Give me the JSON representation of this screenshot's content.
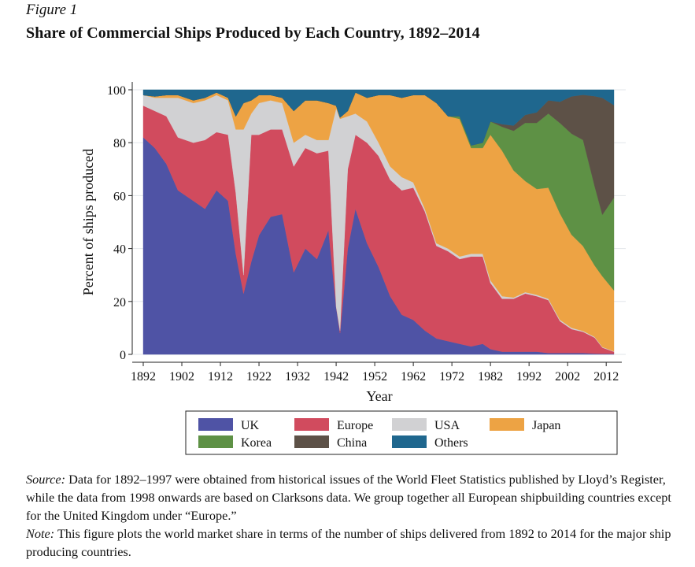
{
  "figure": {
    "label": "Figure 1",
    "title": "Share of Commercial Ships Produced by Each Country, 1892–2014"
  },
  "notes": {
    "source_label": "Source:",
    "source_text": " Data for 1892–1997 were obtained from historical issues of the World Fleet Statistics published by Lloyd’s Register, while the data from 1998 onwards are based on Clarksons data. We group together all European shipbuilding countries except for the United Kingdom under “Europe.”",
    "note_label": "Note:",
    "note_text": " This figure plots the world market share in terms of the number of ships delivered from 1892 to 2014 for the major ship producing countries."
  },
  "chart_data": {
    "type": "area",
    "stacked": true,
    "xlabel": "Year",
    "ylabel": "Percent of ships produced",
    "xlim": [
      1892,
      2014
    ],
    "ylim": [
      0,
      100
    ],
    "xticks": [
      1892,
      1902,
      1912,
      1922,
      1932,
      1942,
      1952,
      1962,
      1972,
      1982,
      1992,
      2002,
      2012
    ],
    "yticks": [
      0,
      20,
      40,
      60,
      80,
      100
    ],
    "grid": true,
    "legend_position": "bottom",
    "x": [
      1892,
      1895,
      1898,
      1901,
      1905,
      1908,
      1911,
      1914,
      1916,
      1918,
      1920,
      1922,
      1925,
      1928,
      1931,
      1934,
      1937,
      1940,
      1942,
      1943,
      1945,
      1947,
      1950,
      1953,
      1956,
      1959,
      1962,
      1965,
      1968,
      1971,
      1974,
      1977,
      1980,
      1982,
      1985,
      1988,
      1991,
      1994,
      1997,
      2000,
      2003,
      2006,
      2009,
      2011,
      2014
    ],
    "series": [
      {
        "name": "UK",
        "color": "#4f53a5",
        "values": [
          82,
          78,
          72,
          62,
          58,
          55,
          62,
          58,
          38,
          23,
          35,
          45,
          52,
          53,
          31,
          40,
          36,
          47,
          18,
          8,
          40,
          55,
          42,
          33,
          22,
          15,
          13,
          9,
          6,
          5,
          4,
          3,
          4,
          2,
          1,
          1,
          1,
          1,
          0.5,
          0.5,
          0.5,
          0.5,
          0.3,
          0.2,
          0.2
        ]
      },
      {
        "name": "Europe",
        "color": "#d14b5e",
        "values": [
          12,
          14,
          18,
          20,
          22,
          26,
          22,
          25,
          23,
          7,
          48,
          38,
          33,
          32,
          40,
          38,
          40,
          30,
          0,
          1,
          30,
          28,
          38,
          42,
          44,
          47,
          50,
          45,
          35,
          34,
          32,
          34,
          33,
          25,
          20,
          20,
          22,
          21,
          20,
          12,
          9,
          8,
          6,
          2,
          0.8
        ]
      },
      {
        "name": "USA",
        "color": "#d1d1d3",
        "values": [
          4,
          5,
          7,
          15,
          15,
          15,
          14,
          13,
          24,
          55,
          8,
          12,
          11,
          10,
          9,
          5,
          5,
          4,
          75,
          80,
          20,
          8,
          8,
          5,
          5,
          5,
          2,
          1,
          1,
          1,
          1,
          1,
          1,
          1,
          1,
          0.5,
          0.5,
          0.5,
          0.5,
          0.5,
          0.5,
          0.3,
          0.3,
          0.2,
          0.2
        ]
      },
      {
        "name": "Japan",
        "color": "#eda344",
        "values": [
          0,
          0.5,
          1,
          1,
          1,
          1,
          1,
          1,
          5,
          10,
          5,
          3,
          2,
          2,
          12,
          13,
          15,
          14,
          1,
          0.5,
          2,
          8,
          9,
          18,
          27,
          30,
          33,
          43,
          53,
          50,
          52,
          40,
          40,
          55,
          55,
          48,
          42,
          40,
          42,
          40,
          35,
          32,
          27,
          23,
          23
        ]
      },
      {
        "name": "Korea",
        "color": "#5e9145",
        "values": [
          0,
          0,
          0,
          0,
          0,
          0,
          0,
          0,
          0,
          0,
          0,
          0,
          0,
          0,
          0,
          0,
          0,
          0,
          0,
          0,
          0,
          0,
          0,
          0,
          0,
          0,
          0,
          0,
          0,
          0,
          1,
          1,
          2,
          5,
          9,
          15,
          22,
          25,
          28,
          34,
          38,
          40,
          30,
          20,
          35
        ]
      },
      {
        "name": "China",
        "color": "#5d5147",
        "values": [
          0,
          0,
          0,
          0,
          0,
          0,
          0,
          0,
          0,
          0,
          0,
          0,
          0,
          0,
          0,
          0,
          0,
          0,
          0,
          0,
          0,
          0,
          0,
          0,
          0,
          0,
          0,
          0,
          0,
          0,
          0,
          0,
          0,
          0,
          1,
          2,
          3,
          4,
          5,
          8,
          14,
          17,
          34,
          38,
          35
        ]
      },
      {
        "name": "Others",
        "color": "#1f678e",
        "values": [
          2,
          2.5,
          2,
          2,
          4,
          3,
          1,
          3,
          10,
          5,
          4,
          2,
          2,
          3,
          8,
          4,
          4,
          5,
          6,
          10.5,
          8,
          1,
          3,
          2,
          2,
          3,
          2,
          2,
          5,
          10,
          10,
          21,
          20,
          12,
          13,
          13.5,
          9.5,
          8.5,
          4,
          4.5,
          2.5,
          1.9,
          2.4,
          2.6,
          5.8
        ]
      }
    ]
  }
}
